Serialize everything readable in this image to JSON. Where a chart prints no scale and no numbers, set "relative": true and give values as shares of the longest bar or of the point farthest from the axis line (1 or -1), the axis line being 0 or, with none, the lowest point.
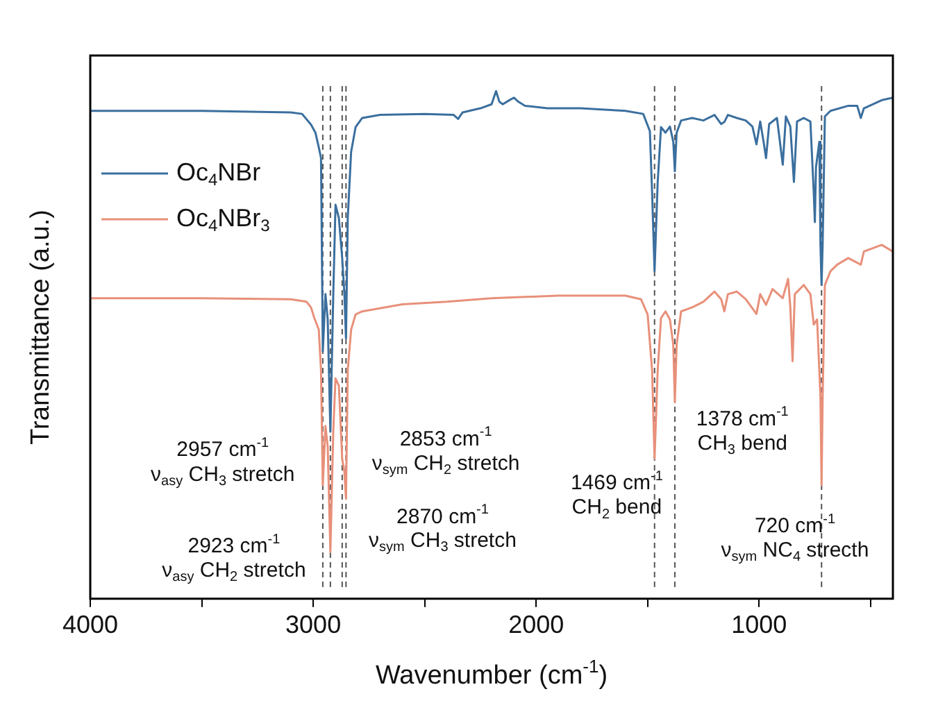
{
  "chart_data": {
    "type": "line",
    "relative": true,
    "xlabel": "Wavenumber (cm$^{-1}$)",
    "ylabel": "Transmittance (a.u.)",
    "xlim": [
      4000,
      400
    ],
    "xticks": [
      4000,
      {
        "value": 3500,
        "label": null
      },
      3000,
      {
        "value": 2500,
        "label": null
      },
      2000,
      {
        "value": 1500,
        "label": null
      },
      1000,
      {
        "value": 500,
        "label": null
      }
    ],
    "grid": false,
    "legend": "top left",
    "series": [
      {
        "name": "Oc$_{4}$NBr",
        "color": "#3b6f9e",
        "x": [
          4000,
          3500,
          3100,
          3050,
          3010,
          2990,
          2975,
          2965,
          2957,
          2945,
          2935,
          2923,
          2910,
          2900,
          2885,
          2870,
          2860,
          2853,
          2845,
          2830,
          2810,
          2780,
          2700,
          2500,
          2370,
          2350,
          2330,
          2250,
          2200,
          2180,
          2165,
          2150,
          2120,
          2100,
          2080,
          2050,
          1950,
          1800,
          1600,
          1520,
          1490,
          1480,
          1469,
          1455,
          1440,
          1420,
          1400,
          1385,
          1378,
          1370,
          1350,
          1300,
          1250,
          1200,
          1170,
          1156,
          1140,
          1100,
          1060,
          1030,
          1012,
          995,
          980,
          969,
          955,
          920,
          894,
          880,
          860,
          844,
          830,
          800,
          770,
          755,
          750,
          745,
          730,
          725,
          720,
          715,
          705,
          680,
          600,
          560,
          544,
          530,
          450,
          400
        ],
        "values": [
          0.961,
          0.961,
          0.958,
          0.955,
          0.934,
          0.918,
          0.889,
          0.868,
          0.487,
          0.6,
          0.55,
          0.329,
          0.6,
          0.776,
          0.75,
          0.671,
          0.6,
          0.513,
          0.75,
          0.88,
          0.929,
          0.947,
          0.953,
          0.955,
          0.953,
          0.945,
          0.958,
          0.966,
          0.974,
          1.0,
          0.979,
          0.974,
          0.982,
          0.987,
          0.979,
          0.971,
          0.966,
          0.966,
          0.961,
          0.955,
          0.921,
          0.8,
          0.645,
          0.82,
          0.929,
          0.918,
          0.93,
          0.9,
          0.842,
          0.918,
          0.942,
          0.947,
          0.942,
          0.953,
          0.935,
          0.939,
          0.953,
          0.947,
          0.942,
          0.93,
          0.895,
          0.94,
          0.9,
          0.868,
          0.935,
          0.947,
          0.855,
          0.95,
          0.93,
          0.821,
          0.94,
          0.947,
          0.94,
          0.8,
          0.742,
          0.85,
          0.9,
          0.7,
          0.618,
          0.7,
          0.95,
          0.961,
          0.971,
          0.971,
          0.947,
          0.966,
          0.982,
          0.987
        ]
      },
      {
        "name": "Oc$_{4}$NBr$_{3}$",
        "color": "#e8907a",
        "x": [
          4000,
          3500,
          3100,
          3030,
          3010,
          2995,
          2975,
          2965,
          2957,
          2945,
          2935,
          2923,
          2910,
          2900,
          2885,
          2870,
          2860,
          2853,
          2845,
          2830,
          2810,
          2780,
          2600,
          2400,
          2200,
          1900,
          1600,
          1530,
          1500,
          1480,
          1469,
          1455,
          1440,
          1420,
          1400,
          1385,
          1378,
          1370,
          1350,
          1300,
          1250,
          1200,
          1170,
          1156,
          1140,
          1100,
          1060,
          1012,
          995,
          969,
          940,
          894,
          870,
          860,
          850,
          840,
          800,
          770,
          755,
          740,
          725,
          720,
          715,
          705,
          680,
          650,
          600,
          544,
          530,
          450,
          400
        ],
        "values": [
          0.592,
          0.592,
          0.59,
          0.585,
          0.574,
          0.553,
          0.53,
          0.45,
          0.224,
          0.34,
          0.3,
          0.092,
          0.33,
          0.434,
          0.42,
          0.276,
          0.25,
          0.197,
          0.45,
          0.53,
          0.56,
          0.566,
          0.58,
          0.585,
          0.592,
          0.597,
          0.597,
          0.59,
          0.56,
          0.45,
          0.276,
          0.45,
          0.553,
          0.566,
          0.55,
          0.5,
          0.387,
          0.5,
          0.566,
          0.574,
          0.585,
          0.605,
          0.59,
          0.566,
          0.6,
          0.605,
          0.59,
          0.561,
          0.6,
          0.579,
          0.61,
          0.592,
          0.63,
          0.574,
          0.468,
          0.6,
          0.618,
          0.6,
          0.54,
          0.55,
          0.4,
          0.224,
          0.4,
          0.618,
          0.645,
          0.658,
          0.671,
          0.658,
          0.684,
          0.697,
          0.684
        ]
      }
    ],
    "ref_lines": [
      {
        "axis": "x",
        "value": 2957,
        "color": "#555555",
        "line_style": "dashed"
      },
      {
        "axis": "x",
        "value": 2923,
        "color": "#555555",
        "line_style": "dashed"
      },
      {
        "axis": "x",
        "value": 2870,
        "color": "#555555",
        "line_style": "dashed"
      },
      {
        "axis": "x",
        "value": 2853,
        "color": "#555555",
        "line_style": "dashed"
      },
      {
        "axis": "x",
        "value": 1469,
        "color": "#555555",
        "line_style": "dashed"
      },
      {
        "axis": "x",
        "value": 1378,
        "color": "#555555",
        "line_style": "dashed"
      },
      {
        "axis": "x",
        "value": 720,
        "color": "#555555",
        "line_style": "dashed"
      }
    ],
    "annotations": [
      "2957 cm$^{-1}$",
      "ν$_{asy}$ CH$_{3}$ stretch",
      "2923 cm$^{-1}$",
      "ν$_{asy}$ CH$_{2}$ stretch",
      "2853 cm$^{-1}$",
      "ν$_{sym}$ CH$_{2}$ stretch",
      "2870 cm$^{-1}$",
      "ν$_{sym}$ CH$_{3}$ stretch",
      "1469 cm$^{-1}$",
      "CH$_{2}$ bend",
      "1378 cm$^{-1}$",
      "CH$_{3}$ bend",
      "720 cm$^{-1}$",
      "ν$_{sym}$ NC$_{4}$ strecth"
    ]
  }
}
